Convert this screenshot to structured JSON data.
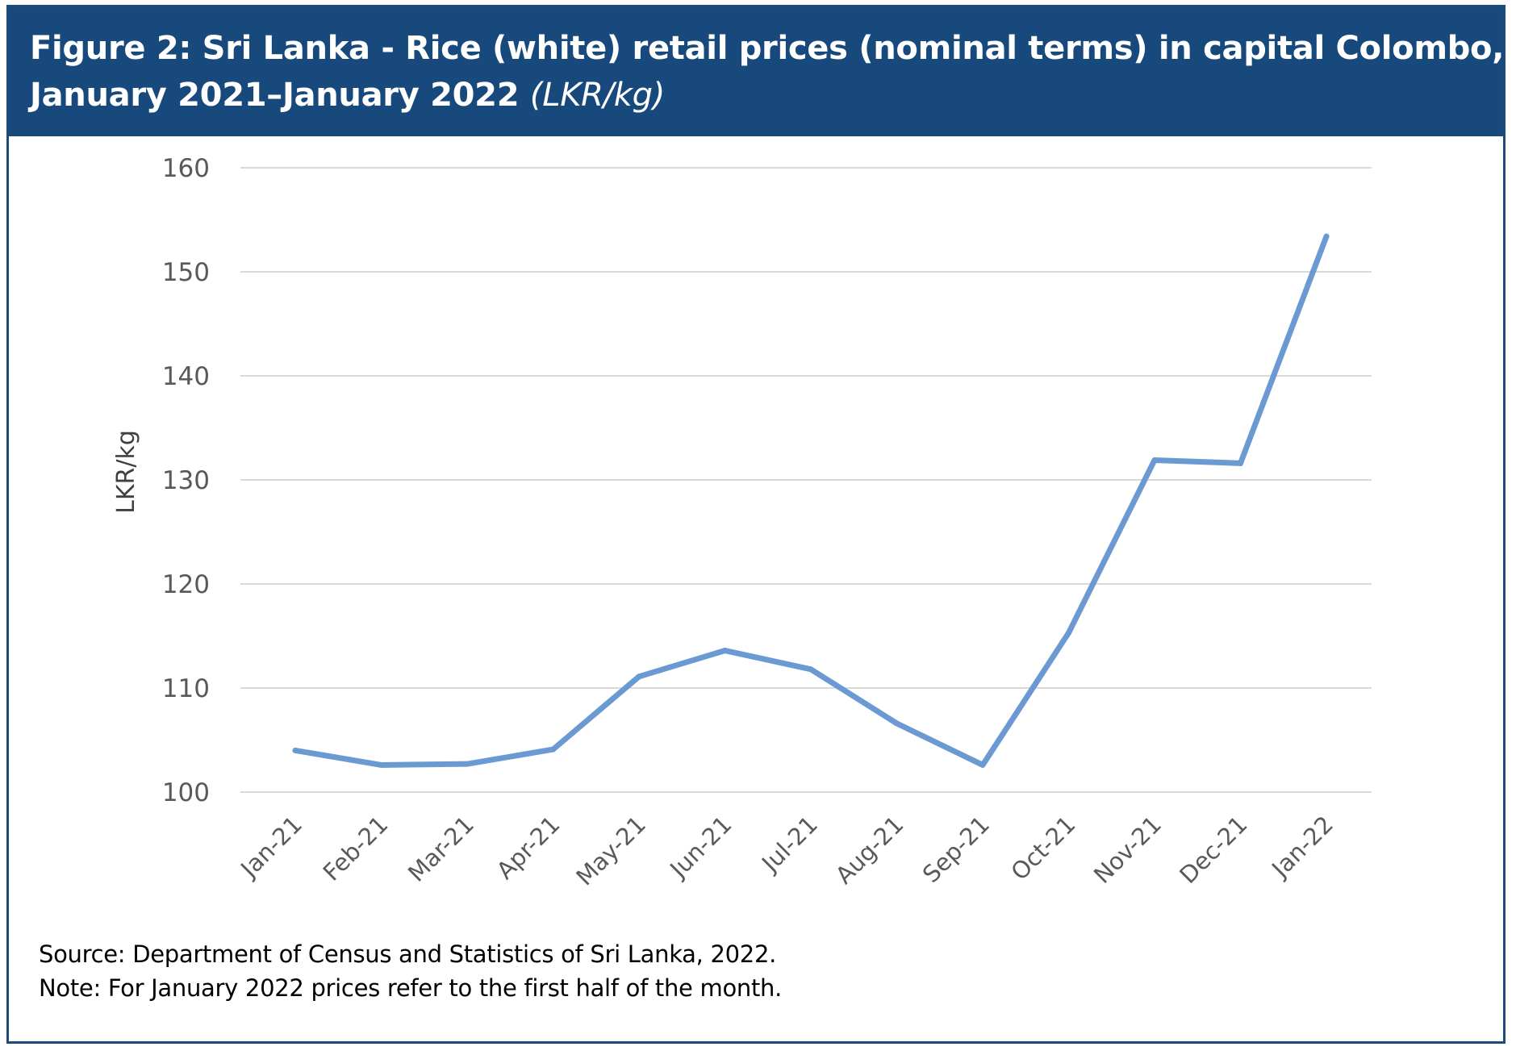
{
  "title": {
    "line1": "Figure 2: Sri Lanka - Rice (white) retail prices (nominal terms) in capital Colombo,",
    "line2": "January 2021–January 2022",
    "unit": "(LKR/kg)"
  },
  "chart_data": {
    "type": "line",
    "ylabel": "LKR/kg",
    "xlabel": "",
    "ylim": [
      100,
      160
    ],
    "yticks": [
      100,
      110,
      120,
      130,
      140,
      150,
      160
    ],
    "grid": true,
    "categories": [
      "Jan-21",
      "Feb-21",
      "Mar-21",
      "Apr-21",
      "May-21",
      "Jun-21",
      "Jul-21",
      "Aug-21",
      "Sep-21",
      "Oct-21",
      "Nov-21",
      "Dec-21",
      "Jan-22"
    ],
    "series": [
      {
        "values": [
          104.0,
          102.6,
          102.7,
          104.1,
          111.1,
          113.6,
          111.8,
          106.6,
          102.6,
          115.3,
          131.9,
          131.6,
          153.4
        ],
        "color": "#6b9ad3"
      }
    ]
  },
  "footer": {
    "source": "Source: Department of Census and Statistics of Sri Lanka, 2022.",
    "note": "Note: For January 2022 prices refer to the first half of the month."
  },
  "colors": {
    "header_bg": "#18497c",
    "gridline": "#d9d9d9",
    "tick_text": "#595959"
  }
}
